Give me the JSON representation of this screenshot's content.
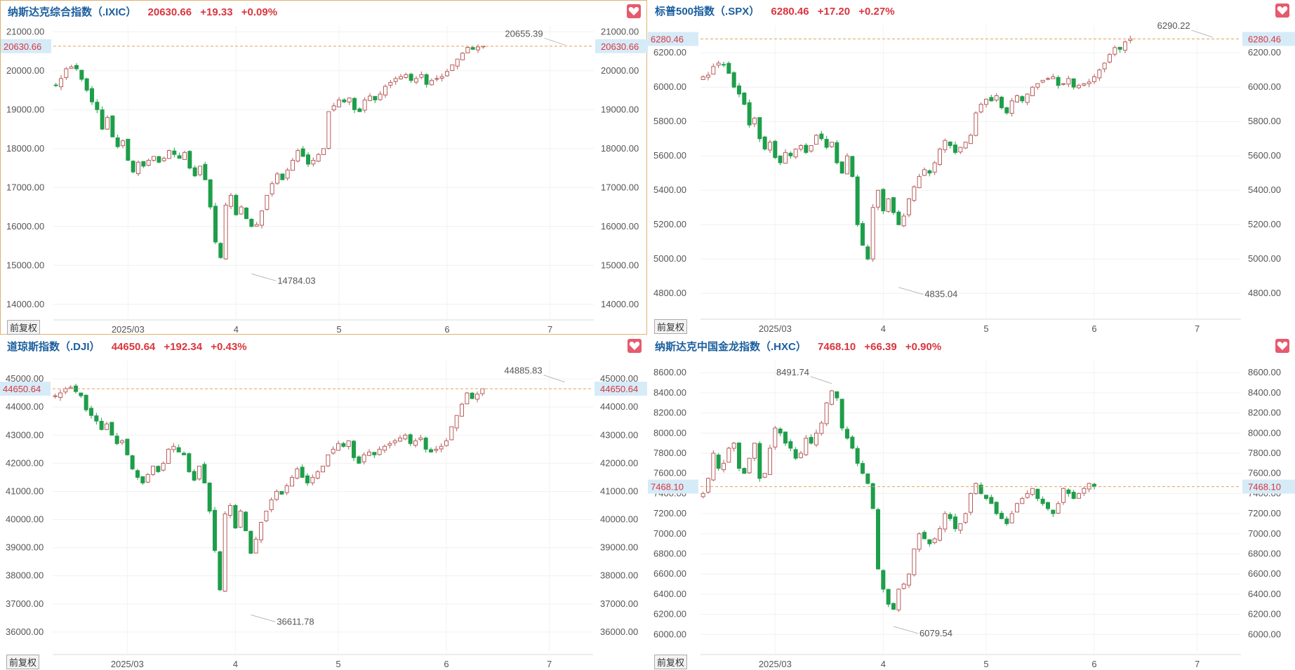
{
  "panels": [
    {
      "title": "纳斯达克综合指数（.IXIC）",
      "price": "20630.66",
      "change": "+19.33",
      "pct": "+0.09%",
      "last_tag": "20630.66",
      "max_label": "20655.39",
      "min_label": "14784.03",
      "fq_label": "前复权",
      "chart_data": {
        "type": "candlestick",
        "ylim": [
          13600,
          21150
        ],
        "yticks": [
          14000,
          15000,
          16000,
          17000,
          18000,
          19000,
          20000,
          21000
        ],
        "tick_suffix": ".00",
        "x_labels": [
          {
            "label": "2025/03",
            "i": 14
          },
          {
            "label": "4",
            "i": 35
          },
          {
            "label": "5",
            "i": 55
          },
          {
            "label": "6",
            "i": 76
          },
          {
            "label": "7",
            "i": 96
          }
        ],
        "last": 20630.66,
        "max": {
          "value": 20655.39,
          "i": 99
        },
        "min": {
          "value": 14784.03,
          "i": 38
        },
        "closes": [
          19630,
          19800,
          20050,
          20100,
          20050,
          19780,
          19500,
          19200,
          19000,
          18500,
          18800,
          18300,
          18050,
          18200,
          17700,
          17400,
          17650,
          17550,
          17700,
          17800,
          17650,
          17750,
          17950,
          17850,
          17750,
          17900,
          17500,
          17300,
          17550,
          17200,
          16500,
          15600,
          15200,
          16550,
          16800,
          16300,
          16500,
          16200,
          16000,
          16050,
          16400,
          16800,
          17100,
          17350,
          17200,
          17450,
          17700,
          17950,
          17800,
          17600,
          17700,
          17850,
          18000,
          18950,
          19100,
          19250,
          19200,
          19300,
          19000,
          18950,
          19250,
          19350,
          19250,
          19400,
          19600,
          19700,
          19800,
          19850,
          19900,
          19750,
          19800,
          19900,
          19650,
          19750,
          19800,
          19850,
          19980,
          20150,
          20300,
          20450,
          20600,
          20550,
          20611,
          20631
        ]
      }
    },
    {
      "title": "标普500指数（.SPX）",
      "price": "6280.46",
      "change": "+17.20",
      "pct": "+0.27%",
      "last_tag": "6280.46",
      "max_label": "6290.22",
      "min_label": "4835.04",
      "fq_label": "前复权",
      "chart_data": {
        "type": "candlestick",
        "ylim": [
          4650,
          6360
        ],
        "yticks": [
          4800,
          5000,
          5200,
          5400,
          5600,
          5800,
          6000,
          6200
        ],
        "tick_suffix": ".00",
        "x_labels": [
          {
            "label": "2025/03",
            "i": 14
          },
          {
            "label": "4",
            "i": 35
          },
          {
            "label": "5",
            "i": 55
          },
          {
            "label": "6",
            "i": 76
          },
          {
            "label": "7",
            "i": 96
          }
        ],
        "last": 6280.46,
        "max": {
          "value": 6290.22,
          "i": 99
        },
        "min": {
          "value": 4835.04,
          "i": 38
        },
        "closes": [
          6060,
          6070,
          6120,
          6140,
          6130,
          6080,
          6000,
          5960,
          5900,
          5780,
          5820,
          5700,
          5640,
          5680,
          5590,
          5560,
          5620,
          5600,
          5640,
          5660,
          5620,
          5660,
          5720,
          5700,
          5650,
          5680,
          5560,
          5500,
          5600,
          5480,
          5200,
          5080,
          5000,
          5300,
          5400,
          5280,
          5350,
          5270,
          5200,
          5250,
          5350,
          5420,
          5480,
          5520,
          5500,
          5560,
          5640,
          5690,
          5660,
          5620,
          5650,
          5680,
          5720,
          5850,
          5900,
          5930,
          5920,
          5950,
          5880,
          5850,
          5920,
          5950,
          5920,
          5960,
          6000,
          6020,
          6040,
          6050,
          6060,
          6010,
          6020,
          6050,
          6000,
          6010,
          6020,
          6030,
          6060,
          6100,
          6140,
          6190,
          6230,
          6220,
          6263,
          6280
        ]
      }
    },
    {
      "title": "道琼斯指数（.DJI）",
      "price": "44650.64",
      "change": "+192.34",
      "pct": "+0.43%",
      "last_tag": "44650.64",
      "max_label": "44885.83",
      "min_label": "36611.78",
      "fq_label": "前复权",
      "chart_data": {
        "type": "candlestick",
        "ylim": [
          35200,
          45650
        ],
        "yticks": [
          36000,
          37000,
          38000,
          39000,
          40000,
          41000,
          42000,
          43000,
          44000,
          45000
        ],
        "tick_suffix": ".00",
        "x_labels": [
          {
            "label": "2025/03",
            "i": 14
          },
          {
            "label": "4",
            "i": 35
          },
          {
            "label": "5",
            "i": 55
          },
          {
            "label": "6",
            "i": 76
          },
          {
            "label": "7",
            "i": 96
          }
        ],
        "last": 44650.64,
        "max": {
          "value": 44885.83,
          "i": 99
        },
        "min": {
          "value": 36611.78,
          "i": 38
        },
        "closes": [
          44400,
          44500,
          44650,
          44700,
          44550,
          44400,
          43900,
          43700,
          43500,
          43200,
          43400,
          43000,
          42700,
          42800,
          42300,
          41800,
          41500,
          41300,
          41600,
          41900,
          41700,
          42000,
          42500,
          42600,
          42400,
          42300,
          41700,
          41400,
          41900,
          41300,
          40300,
          38900,
          37500,
          40200,
          40500,
          39700,
          40300,
          39600,
          38800,
          39300,
          39900,
          40300,
          40700,
          41000,
          40900,
          41200,
          41500,
          41800,
          41500,
          41300,
          41500,
          41700,
          41900,
          42300,
          42500,
          42700,
          42600,
          42800,
          42200,
          42000,
          42300,
          42400,
          42300,
          42500,
          42600,
          42700,
          42800,
          42900,
          43000,
          42700,
          42800,
          42900,
          42500,
          42400,
          42500,
          42600,
          42800,
          43300,
          43700,
          44100,
          44500,
          44300,
          44458,
          44650
        ]
      }
    },
    {
      "title": "纳斯达克中国金龙指数（.HXC）",
      "price": "7468.10",
      "change": "+66.39",
      "pct": "+0.90%",
      "last_tag": "7468.10",
      "max_label": "8491.74",
      "min_label": "6079.54",
      "fq_label": "前复权",
      "chart_data": {
        "type": "candlestick",
        "ylim": [
          5800,
          8720
        ],
        "yticks": [
          6000,
          6200,
          6400,
          6600,
          6800,
          7000,
          7200,
          7400,
          7600,
          7800,
          8000,
          8200,
          8400,
          8600
        ],
        "tick_suffix": ".00",
        "x_labels": [
          {
            "label": "2025/03",
            "i": 14
          },
          {
            "label": "4",
            "i": 35
          },
          {
            "label": "5",
            "i": 55
          },
          {
            "label": "6",
            "i": 76
          },
          {
            "label": "7",
            "i": 96
          }
        ],
        "last": 7468.1,
        "max": {
          "value": 8491.74,
          "i": 25
        },
        "min": {
          "value": 6079.54,
          "i": 37
        },
        "closes": [
          7400,
          7550,
          7800,
          7650,
          7700,
          7850,
          7900,
          7650,
          7600,
          7750,
          7900,
          7550,
          7600,
          7850,
          8050,
          8000,
          7900,
          7850,
          7750,
          7800,
          7950,
          7900,
          8000,
          8100,
          8300,
          8420,
          8350,
          8050,
          7950,
          7850,
          7700,
          7600,
          7500,
          7250,
          6650,
          6450,
          6300,
          6250,
          6450,
          6500,
          6600,
          6850,
          7000,
          6950,
          6900,
          6950,
          7050,
          7200,
          7150,
          7050,
          7100,
          7200,
          7400,
          7500,
          7400,
          7350,
          7300,
          7200,
          7150,
          7100,
          7200,
          7300,
          7350,
          7400,
          7450,
          7350,
          7300,
          7250,
          7200,
          7300,
          7450,
          7400,
          7350,
          7400,
          7450,
          7500,
          7468
        ]
      }
    }
  ]
}
